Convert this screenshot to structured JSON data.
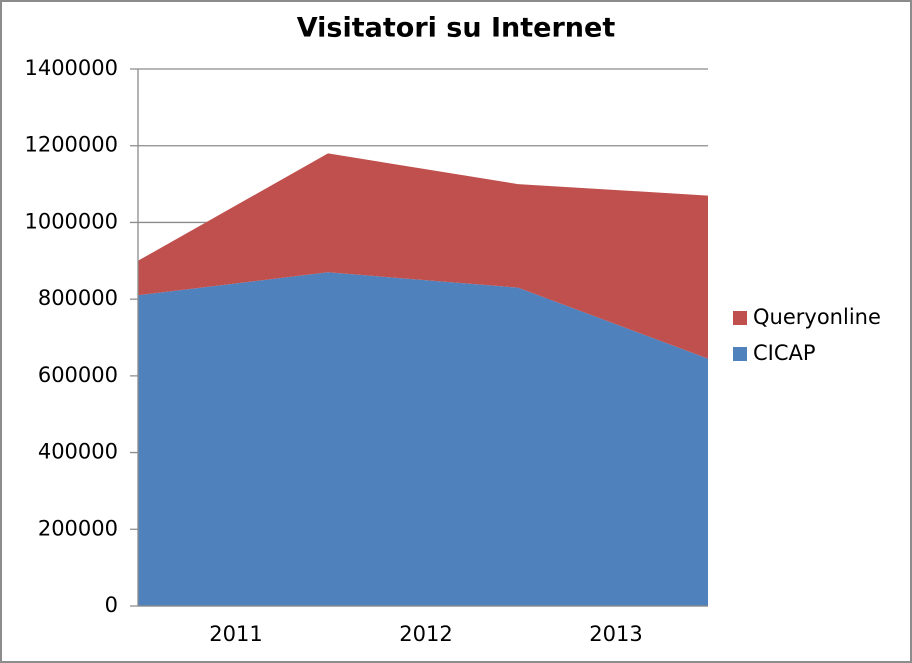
{
  "chart_data": {
    "type": "stacked-area",
    "title": "Visitatori su Internet",
    "categories": [
      "2011",
      "2012",
      "2013",
      null
    ],
    "series": [
      {
        "name": "CICAP",
        "color": "#4f81bd",
        "values": [
          810000,
          870000,
          830000,
          645000
        ]
      },
      {
        "name": "Queryonline",
        "color": "#c0504d",
        "values": [
          90000,
          310000,
          270000,
          425000
        ]
      }
    ],
    "ylim": [
      0,
      1400000
    ],
    "yticks": [
      0,
      200000,
      400000,
      600000,
      800000,
      1000000,
      1200000,
      1400000
    ],
    "grid": true,
    "legend": "right"
  }
}
